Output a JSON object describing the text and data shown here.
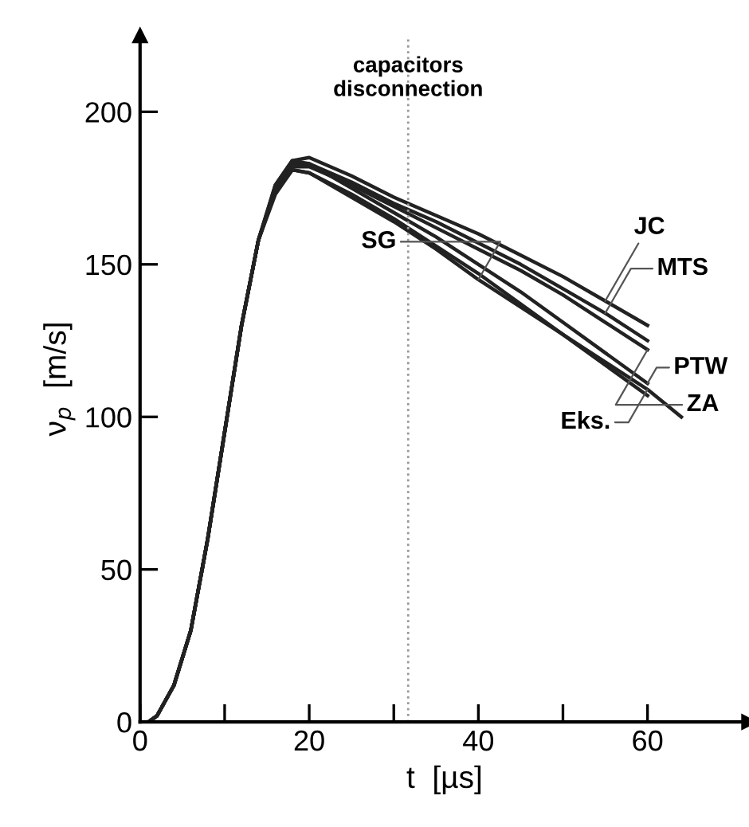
{
  "chart_data": {
    "type": "line",
    "xlabel": "t  [µs]",
    "ylabel": "ν$_{p}$  [m/s]",
    "x": [
      0,
      1,
      2,
      4,
      6,
      8,
      10,
      12,
      14,
      16,
      18,
      20,
      25,
      30,
      35,
      40,
      45,
      50,
      55,
      60
    ],
    "xlim": [
      0,
      72
    ],
    "ylim": [
      0,
      225
    ],
    "xticks": [
      0,
      {
        "value": 10,
        "label": null
      },
      20,
      {
        "value": 30,
        "label": null
      },
      40,
      {
        "value": 50,
        "label": null
      },
      60
    ],
    "yticks": [
      0,
      50,
      100,
      150,
      200
    ],
    "grid": false,
    "legend": false,
    "marker": "none",
    "line_style": "solid",
    "series": [
      {
        "name": "JC",
        "color": "#222222",
        "values": [
          0,
          0,
          2,
          12,
          30,
          60,
          95,
          130,
          158,
          176,
          184,
          185,
          179,
          172,
          166,
          160,
          153,
          146,
          138,
          130
        ]
      },
      {
        "name": "MTS",
        "color": "#222222",
        "values": [
          0,
          0,
          2,
          12,
          30,
          60,
          95,
          130,
          158,
          175,
          183,
          183,
          177,
          170,
          164,
          157,
          150,
          142,
          134,
          125
        ]
      },
      {
        "name": "ZA",
        "color": "#222222",
        "values": [
          0,
          0,
          2,
          12,
          30,
          60,
          95,
          130,
          158,
          174,
          182,
          182,
          176,
          169,
          162,
          155,
          148,
          140,
          131,
          122
        ]
      },
      {
        "name": "SG",
        "color": "#222222",
        "values": [
          0,
          0,
          2,
          12,
          30,
          60,
          95,
          130,
          158,
          174,
          181,
          180,
          172,
          164,
          155,
          145,
          136,
          127,
          117,
          107
        ]
      },
      {
        "name": "PTW",
        "color": "#222222",
        "values": [
          0,
          0,
          2,
          12,
          30,
          60,
          95,
          130,
          158,
          176,
          184,
          183,
          175,
          167,
          159,
          150,
          141,
          131,
          121,
          111
        ]
      },
      {
        "name": "Eks.",
        "color": "#222222",
        "x": [
          0,
          1,
          2,
          4,
          6,
          8,
          10,
          12,
          14,
          16,
          18,
          20,
          25,
          30,
          35,
          40,
          45,
          50,
          55,
          60,
          64
        ],
        "values": [
          0,
          0,
          2,
          12,
          30,
          60,
          95,
          130,
          158,
          173,
          181,
          180,
          173,
          165,
          156,
          147,
          137,
          127,
          118,
          109,
          100
        ]
      }
    ],
    "ref_lines": [
      {
        "axis": "x",
        "value": 31.7,
        "label": "capacitors\ndisconnection",
        "color": "#999999",
        "line_style": "dotted"
      }
    ]
  }
}
